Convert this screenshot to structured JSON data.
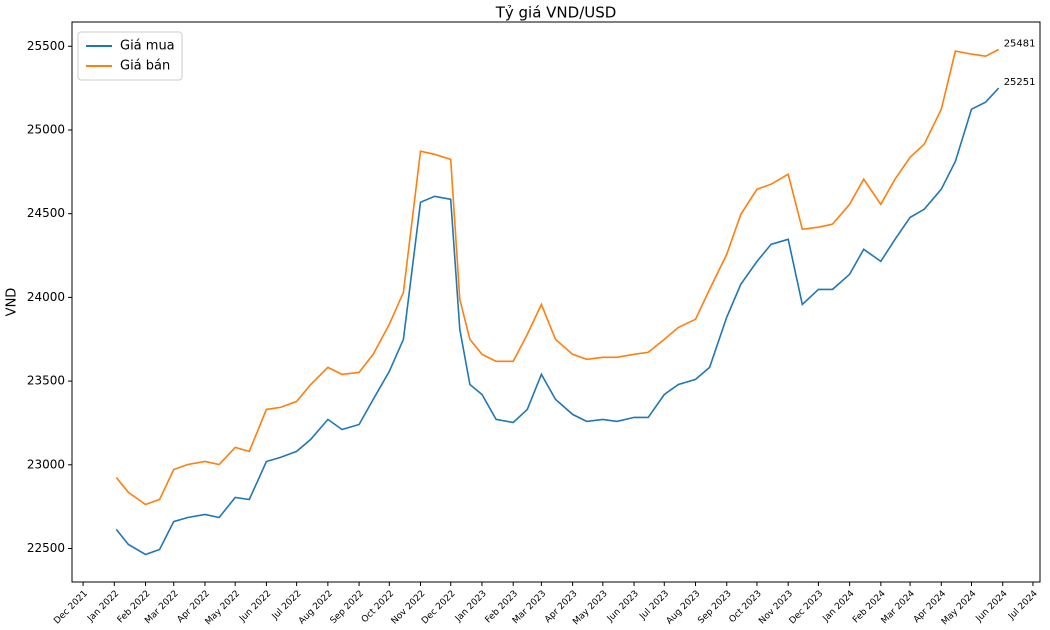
{
  "chart_data": {
    "type": "line",
    "title": "Tỷ giá VND/USD",
    "y_label": "VND",
    "x": [
      "2022-01-03",
      "2022-01-15",
      "2022-02-01",
      "2022-02-15",
      "2022-03-01",
      "2022-03-15",
      "2022-04-01",
      "2022-04-15",
      "2022-05-01",
      "2022-05-15",
      "2022-06-01",
      "2022-06-15",
      "2022-07-01",
      "2022-07-15",
      "2022-08-01",
      "2022-08-15",
      "2022-09-01",
      "2022-09-15",
      "2022-10-01",
      "2022-10-15",
      "2022-11-01",
      "2022-11-15",
      "2022-12-01",
      "2022-12-10",
      "2022-12-20",
      "2023-01-01",
      "2023-01-15",
      "2023-02-01",
      "2023-02-15",
      "2023-03-01",
      "2023-03-15",
      "2023-04-01",
      "2023-04-15",
      "2023-05-01",
      "2023-05-15",
      "2023-06-01",
      "2023-06-15",
      "2023-07-01",
      "2023-07-15",
      "2023-08-01",
      "2023-08-15",
      "2023-09-01",
      "2023-09-15",
      "2023-10-01",
      "2023-10-15",
      "2023-11-01",
      "2023-11-15",
      "2023-12-01",
      "2023-12-15",
      "2024-01-01",
      "2024-01-15",
      "2024-02-01",
      "2024-02-15",
      "2024-03-01",
      "2024-03-15",
      "2024-04-01",
      "2024-04-15",
      "2024-05-01",
      "2024-05-15",
      "2024-05-28"
    ],
    "series": [
      {
        "name": "Giá mua",
        "color": "#1f77b4",
        "values": [
          22614,
          22524,
          22464,
          22494,
          22661,
          22685,
          22703,
          22685,
          22805,
          22793,
          23020,
          23044,
          23080,
          23152,
          23271,
          23211,
          23241,
          23391,
          23558,
          23749,
          24568,
          24604,
          24586,
          23809,
          23480,
          23420,
          23271,
          23253,
          23331,
          23540,
          23391,
          23301,
          23259,
          23271,
          23259,
          23283,
          23283,
          23420,
          23480,
          23510,
          23582,
          23881,
          24078,
          24215,
          24317,
          24347,
          23958,
          24048,
          24048,
          24138,
          24287,
          24215,
          24347,
          24478,
          24526,
          24646,
          24813,
          25124,
          25166,
          25251
        ]
      },
      {
        "name": "Giá bán",
        "color": "#ff7f0e",
        "values": [
          22924,
          22835,
          22763,
          22793,
          22972,
          23002,
          23020,
          23002,
          23104,
          23080,
          23331,
          23343,
          23379,
          23480,
          23582,
          23540,
          23552,
          23660,
          23839,
          24030,
          24873,
          24855,
          24825,
          23988,
          23749,
          23660,
          23618,
          23618,
          23779,
          23958,
          23749,
          23660,
          23630,
          23642,
          23642,
          23660,
          23672,
          23749,
          23821,
          23869,
          24048,
          24257,
          24496,
          24646,
          24676,
          24736,
          24407,
          24419,
          24437,
          24556,
          24706,
          24556,
          24706,
          24837,
          24915,
          25124,
          25471,
          25453,
          25441,
          25481
        ]
      }
    ],
    "annotations": [
      {
        "x": "2024-05-28",
        "y": 25481
      },
      {
        "x": "2024-05-28",
        "y": 25251
      }
    ],
    "xlim": [
      "2021-11-20",
      "2024-07-08"
    ],
    "xticks": [
      {
        "value": "2021-12-01",
        "label": "Dec 2021"
      },
      {
        "value": "2022-01-01",
        "label": "Jan 2022"
      },
      {
        "value": "2022-02-01",
        "label": "Feb 2022"
      },
      {
        "value": "2022-03-01",
        "label": "Mar 2022"
      },
      {
        "value": "2022-04-01",
        "label": "Apr 2022"
      },
      {
        "value": "2022-05-01",
        "label": "May 2022"
      },
      {
        "value": "2022-06-01",
        "label": "Jun 2022"
      },
      {
        "value": "2022-07-01",
        "label": "Jul 2022"
      },
      {
        "value": "2022-08-01",
        "label": "Aug 2022"
      },
      {
        "value": "2022-09-01",
        "label": "Sep 2022"
      },
      {
        "value": "2022-10-01",
        "label": "Oct 2022"
      },
      {
        "value": "2022-11-01",
        "label": "Nov 2022"
      },
      {
        "value": "2022-12-01",
        "label": "Dec 2022"
      },
      {
        "value": "2023-01-01",
        "label": "Jan 2023"
      },
      {
        "value": "2023-02-01",
        "label": "Feb 2023"
      },
      {
        "value": "2023-03-01",
        "label": "Mar 2023"
      },
      {
        "value": "2023-04-01",
        "label": "Apr 2023"
      },
      {
        "value": "2023-05-01",
        "label": "May 2023"
      },
      {
        "value": "2023-06-01",
        "label": "Jun 2023"
      },
      {
        "value": "2023-07-01",
        "label": "Jul 2023"
      },
      {
        "value": "2023-08-01",
        "label": "Aug 2023"
      },
      {
        "value": "2023-09-01",
        "label": "Sep 2023"
      },
      {
        "value": "2023-10-01",
        "label": "Oct 2023"
      },
      {
        "value": "2023-11-01",
        "label": "Nov 2023"
      },
      {
        "value": "2023-12-01",
        "label": "Dec 2023"
      },
      {
        "value": "2024-01-01",
        "label": "Jan 2024"
      },
      {
        "value": "2024-02-01",
        "label": "Feb 2024"
      },
      {
        "value": "2024-03-01",
        "label": "Mar 2024"
      },
      {
        "value": "2024-04-01",
        "label": "Apr 2024"
      },
      {
        "value": "2024-05-01",
        "label": "May 2024"
      },
      {
        "value": "2024-06-01",
        "label": "Jun 2024"
      },
      {
        "value": "2024-07-01",
        "label": "Jul 2024"
      }
    ],
    "ylim": [
      22300,
      25645
    ],
    "yticks": [
      22500,
      23000,
      23500,
      24000,
      24500,
      25000,
      25500
    ],
    "grid": false,
    "legend": "upper left"
  }
}
